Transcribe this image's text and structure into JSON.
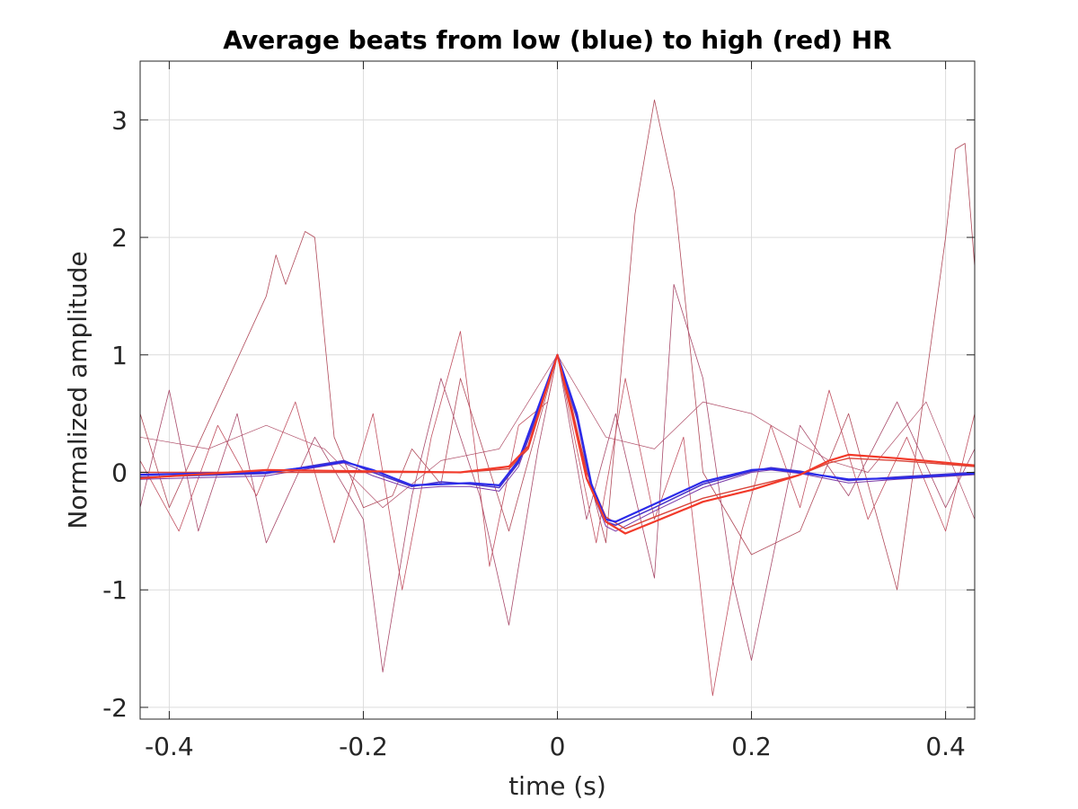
{
  "chart_data": {
    "type": "line",
    "title": "Average beats from low (blue) to high (red) HR",
    "xlabel": "time (s)",
    "ylabel": "Normalized amplitude",
    "xlim": [
      -0.43,
      0.43
    ],
    "ylim": [
      -2.1,
      3.5
    ],
    "xticks": [
      -0.4,
      -0.2,
      0,
      0.2,
      0.4
    ],
    "xtick_labels": [
      "-0.4",
      "-0.2",
      "0",
      "0.2",
      "0.4"
    ],
    "yticks": [
      -2,
      -1,
      0,
      1,
      2,
      3
    ],
    "ytick_labels": [
      "-2",
      "-1",
      "0",
      "1",
      "2",
      "3"
    ],
    "grid": true,
    "legend": "none",
    "colors": {
      "low_hr": "#2b2bea",
      "mid_hr": "#7a3aa8",
      "high_hr": "#f23a2a",
      "noisy": "#b04a5a"
    },
    "series": [
      {
        "color": "#2b2bea",
        "width": 2.2,
        "x": [
          -0.43,
          -0.3,
          -0.25,
          -0.22,
          -0.19,
          -0.15,
          -0.12,
          -0.09,
          -0.06,
          -0.04,
          -0.02,
          0,
          0.02,
          0.035,
          0.05,
          0.06,
          0.1,
          0.15,
          0.2,
          0.22,
          0.25,
          0.3,
          0.35,
          0.43
        ],
        "values": [
          -0.02,
          0.0,
          0.05,
          0.09,
          0.02,
          -0.11,
          -0.1,
          -0.09,
          -0.11,
          0.1,
          0.55,
          1.0,
          0.5,
          -0.1,
          -0.4,
          -0.42,
          -0.27,
          -0.08,
          0.02,
          0.03,
          0.0,
          -0.06,
          -0.05,
          -0.01
        ]
      },
      {
        "color": "#4a35c8",
        "width": 1.6,
        "x": [
          -0.43,
          -0.3,
          -0.25,
          -0.22,
          -0.19,
          -0.15,
          -0.12,
          -0.09,
          -0.06,
          -0.04,
          -0.02,
          0,
          0.02,
          0.035,
          0.05,
          0.06,
          0.1,
          0.15,
          0.2,
          0.22,
          0.25,
          0.3,
          0.35,
          0.43
        ],
        "values": [
          -0.04,
          -0.01,
          0.06,
          0.1,
          0.0,
          -0.12,
          -0.08,
          -0.1,
          -0.13,
          0.08,
          0.52,
          1.0,
          0.48,
          -0.12,
          -0.42,
          -0.45,
          -0.3,
          -0.1,
          0.01,
          0.04,
          0.01,
          -0.07,
          -0.04,
          0.0
        ]
      },
      {
        "color": "#7a3aa8",
        "width": 1.0,
        "x": [
          -0.43,
          -0.3,
          -0.25,
          -0.22,
          -0.19,
          -0.15,
          -0.12,
          -0.09,
          -0.06,
          -0.04,
          -0.02,
          0,
          0.02,
          0.035,
          0.05,
          0.06,
          0.1,
          0.15,
          0.2,
          0.22,
          0.25,
          0.3,
          0.35,
          0.43
        ],
        "values": [
          -0.06,
          -0.03,
          0.04,
          0.08,
          -0.03,
          -0.14,
          -0.12,
          -0.12,
          -0.16,
          0.05,
          0.5,
          1.0,
          0.45,
          -0.15,
          -0.46,
          -0.5,
          -0.33,
          -0.13,
          0.0,
          0.02,
          -0.01,
          -0.09,
          -0.06,
          -0.02
        ]
      },
      {
        "color": "#d9443a",
        "width": 1.4,
        "x": [
          -0.43,
          -0.3,
          -0.2,
          -0.1,
          -0.05,
          -0.03,
          -0.015,
          0,
          0.015,
          0.03,
          0.05,
          0.07,
          0.1,
          0.15,
          0.2,
          0.25,
          0.28,
          0.3,
          0.35,
          0.43
        ],
        "values": [
          0.0,
          0.0,
          0.0,
          0.0,
          0.03,
          0.2,
          0.6,
          1.0,
          0.55,
          0.0,
          -0.38,
          -0.48,
          -0.38,
          -0.22,
          -0.12,
          -0.02,
          0.08,
          0.12,
          0.1,
          0.05
        ]
      },
      {
        "color": "#f23a2a",
        "width": 2.2,
        "x": [
          -0.43,
          -0.3,
          -0.2,
          -0.1,
          -0.05,
          -0.03,
          -0.015,
          0,
          0.015,
          0.03,
          0.05,
          0.07,
          0.1,
          0.15,
          0.2,
          0.25,
          0.28,
          0.3,
          0.35,
          0.43
        ],
        "values": [
          -0.05,
          0.02,
          0.01,
          0.0,
          0.05,
          0.22,
          0.62,
          1.0,
          0.5,
          -0.05,
          -0.42,
          -0.52,
          -0.42,
          -0.25,
          -0.15,
          -0.02,
          0.1,
          0.15,
          0.12,
          0.06
        ]
      },
      {
        "color": "#b04a5a",
        "width": 0.8,
        "x": [
          -0.43,
          -0.4,
          -0.35,
          -0.3,
          -0.29,
          -0.28,
          -0.26,
          -0.25,
          -0.23,
          -0.2,
          -0.17,
          -0.15,
          -0.12,
          -0.1,
          -0.05,
          0,
          0.05,
          0.08,
          0.1,
          0.12,
          0.15,
          0.2,
          0.25,
          0.3,
          0.35,
          0.4,
          0.41,
          0.42,
          0.43
        ],
        "values": [
          0.5,
          -0.3,
          0.6,
          1.5,
          1.85,
          1.6,
          2.05,
          2.0,
          0.3,
          -0.3,
          -0.2,
          0.2,
          -0.1,
          0.8,
          -0.5,
          1.0,
          -0.6,
          2.2,
          3.17,
          2.4,
          0.0,
          -0.7,
          -0.5,
          0.5,
          -1.0,
          2.0,
          2.75,
          2.8,
          1.75
        ]
      },
      {
        "color": "#a84a6a",
        "width": 0.8,
        "x": [
          -0.43,
          -0.4,
          -0.37,
          -0.33,
          -0.3,
          -0.25,
          -0.2,
          -0.18,
          -0.15,
          -0.12,
          -0.08,
          -0.05,
          -0.02,
          0,
          0.03,
          0.06,
          0.1,
          0.12,
          0.15,
          0.18,
          0.2,
          0.25,
          0.3,
          0.35,
          0.4,
          0.43
        ],
        "values": [
          -0.3,
          0.7,
          -0.5,
          0.5,
          -0.6,
          0.3,
          -0.4,
          -1.7,
          -0.2,
          0.8,
          -0.2,
          -1.3,
          0.2,
          1.0,
          -0.4,
          0.5,
          -0.9,
          1.6,
          0.8,
          -0.9,
          -1.6,
          0.4,
          -0.2,
          0.6,
          -0.3,
          0.2
        ]
      },
      {
        "color": "#c05060",
        "width": 0.8,
        "x": [
          -0.43,
          -0.39,
          -0.35,
          -0.31,
          -0.27,
          -0.23,
          -0.19,
          -0.16,
          -0.13,
          -0.1,
          -0.07,
          -0.04,
          -0.01,
          0,
          0.04,
          0.07,
          0.1,
          0.13,
          0.16,
          0.19,
          0.22,
          0.25,
          0.28,
          0.32,
          0.36,
          0.4,
          0.43
        ],
        "values": [
          0.1,
          -0.5,
          0.4,
          -0.2,
          0.6,
          -0.6,
          0.5,
          -1.0,
          0.3,
          1.2,
          -0.8,
          0.4,
          0.6,
          1.0,
          -0.6,
          0.8,
          -0.4,
          0.3,
          -1.9,
          -0.5,
          0.4,
          -0.3,
          0.7,
          -0.4,
          0.3,
          -0.5,
          0.5
        ]
      },
      {
        "color": "#b0506a",
        "width": 0.7,
        "x": [
          -0.43,
          -0.36,
          -0.3,
          -0.24,
          -0.18,
          -0.12,
          -0.06,
          0,
          0.05,
          0.1,
          0.15,
          0.2,
          0.24,
          0.28,
          0.32,
          0.38,
          0.43
        ],
        "values": [
          0.3,
          0.2,
          0.4,
          0.2,
          -0.3,
          0.1,
          0.2,
          1.0,
          0.3,
          0.2,
          0.6,
          0.5,
          0.3,
          0.1,
          0.0,
          0.6,
          -0.4
        ]
      }
    ]
  }
}
